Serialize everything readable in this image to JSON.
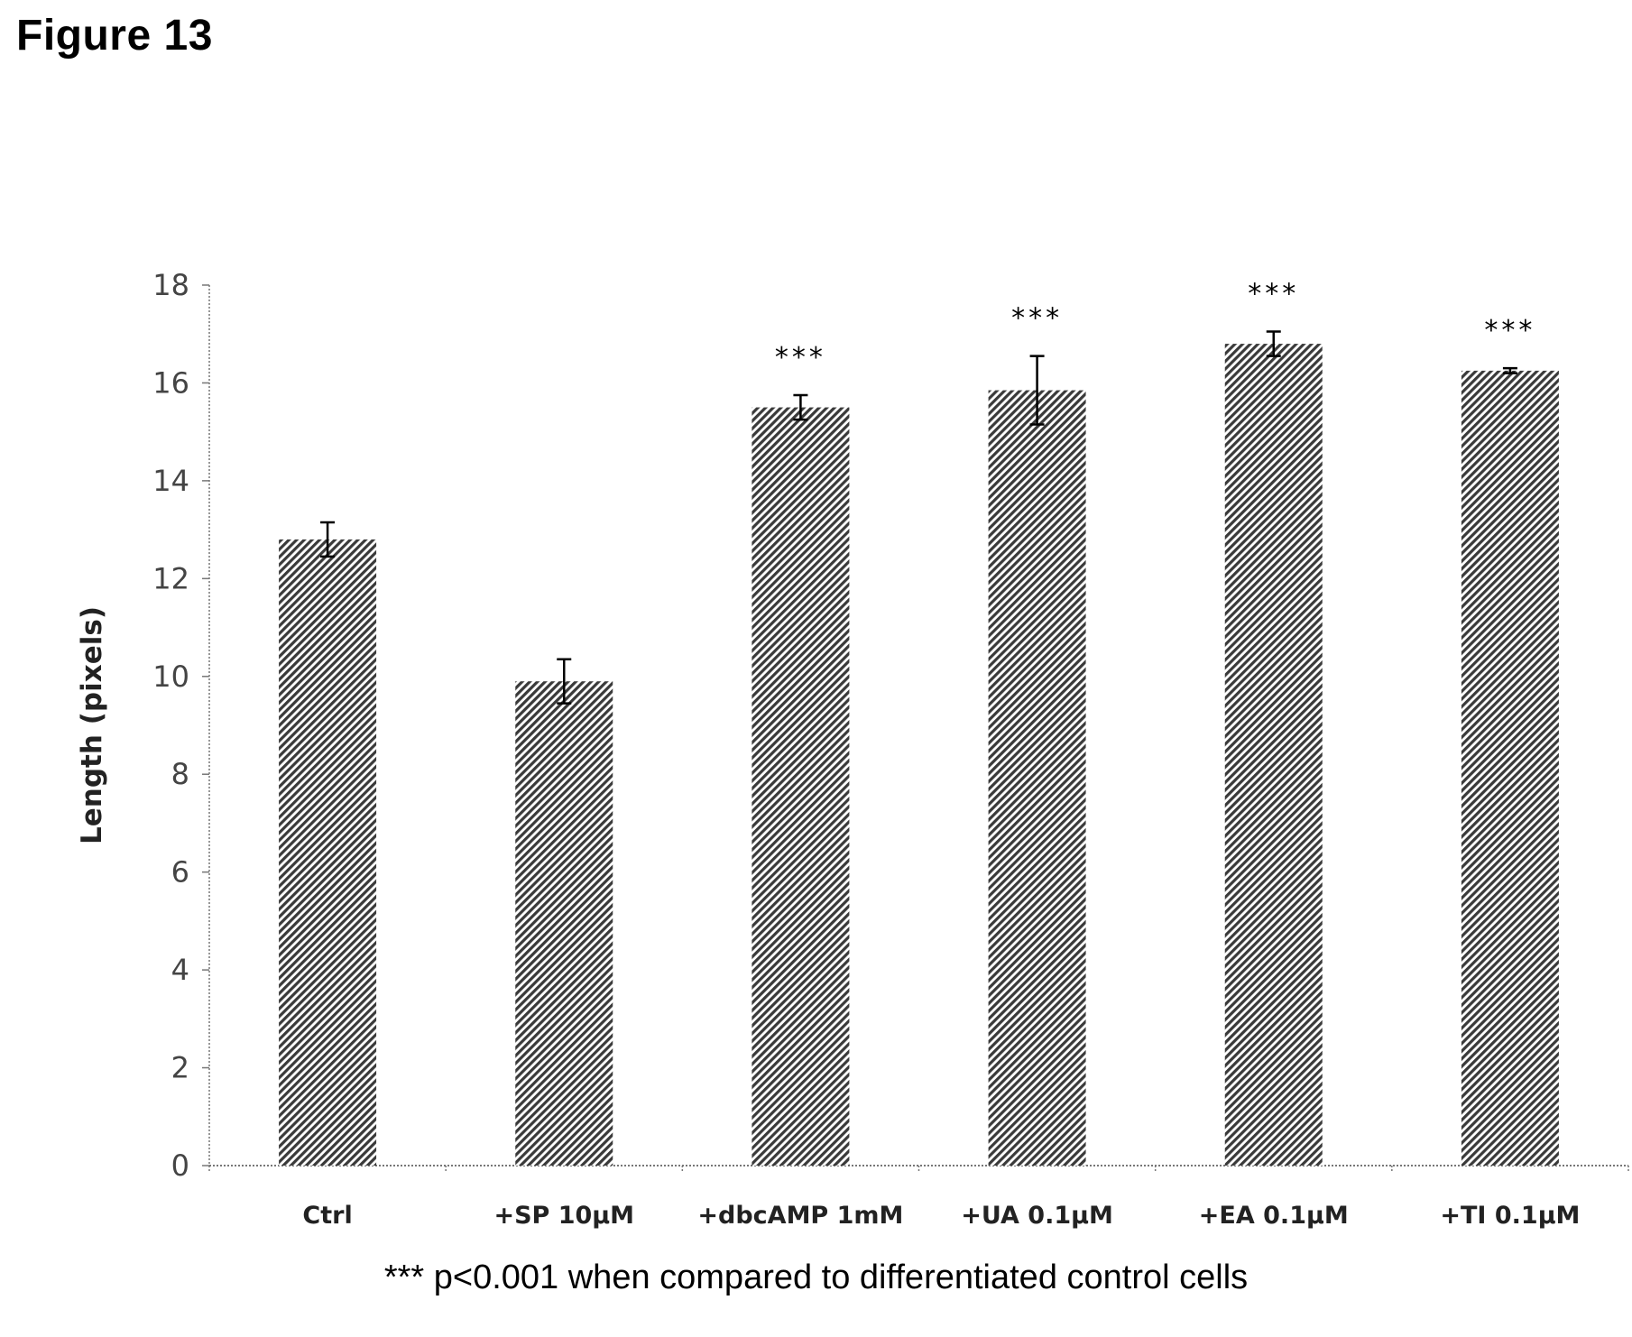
{
  "figure_label": "Figure 13",
  "footnote": "*** p<0.001 when compared to differentiated control cells",
  "chart_data": {
    "type": "bar",
    "title": "",
    "xlabel": "",
    "ylabel": "Length (pixels)",
    "ylim": [
      0,
      18
    ],
    "yticks": [
      0,
      2,
      4,
      6,
      8,
      10,
      12,
      14,
      16,
      18
    ],
    "grid": false,
    "categories": [
      "Ctrl",
      "+SP 10µM",
      "+dbcAMP 1mM",
      "+UA 0.1µM",
      "+EA 0.1µM",
      "+TI 0.1µM"
    ],
    "values": [
      12.8,
      9.9,
      15.5,
      15.85,
      16.8,
      16.25
    ],
    "errors": [
      0.35,
      0.45,
      0.25,
      0.7,
      0.25,
      0.05
    ],
    "annotations": [
      "",
      "",
      "***",
      "***",
      "***",
      "***"
    ],
    "bar_fill": "hatched",
    "bar_color": "#3a3a3a"
  }
}
